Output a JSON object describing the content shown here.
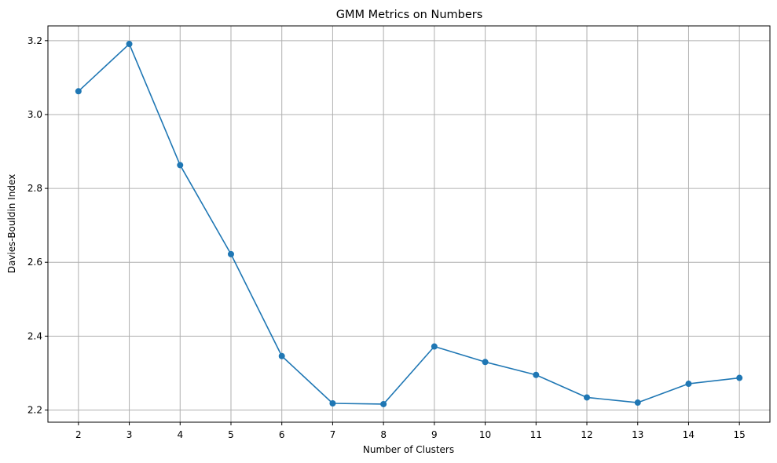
{
  "chart_data": {
    "type": "line",
    "title": "GMM Metrics on Numbers",
    "xlabel": "Number of Clusters",
    "ylabel": "Davies-Bouldin Index",
    "x": [
      2,
      3,
      4,
      5,
      6,
      7,
      8,
      9,
      10,
      11,
      12,
      13,
      14,
      15
    ],
    "series": [
      {
        "values": [
          3.063,
          3.191,
          2.863,
          2.622,
          2.346,
          2.218,
          2.216,
          2.372,
          2.33,
          2.295,
          2.234,
          2.22,
          2.271,
          2.287
        ],
        "color": "#1f77b4",
        "marker": "circle"
      }
    ],
    "xlim": [
      1.4,
      15.6
    ],
    "ylim": [
      2.167,
      3.24
    ],
    "xticks": [
      "2",
      "3",
      "4",
      "5",
      "6",
      "7",
      "8",
      "9",
      "10",
      "11",
      "12",
      "13",
      "14",
      "15"
    ],
    "yticks": [
      "2.2",
      "2.4",
      "2.6",
      "2.8",
      "3.0",
      "3.2"
    ],
    "grid": true
  }
}
